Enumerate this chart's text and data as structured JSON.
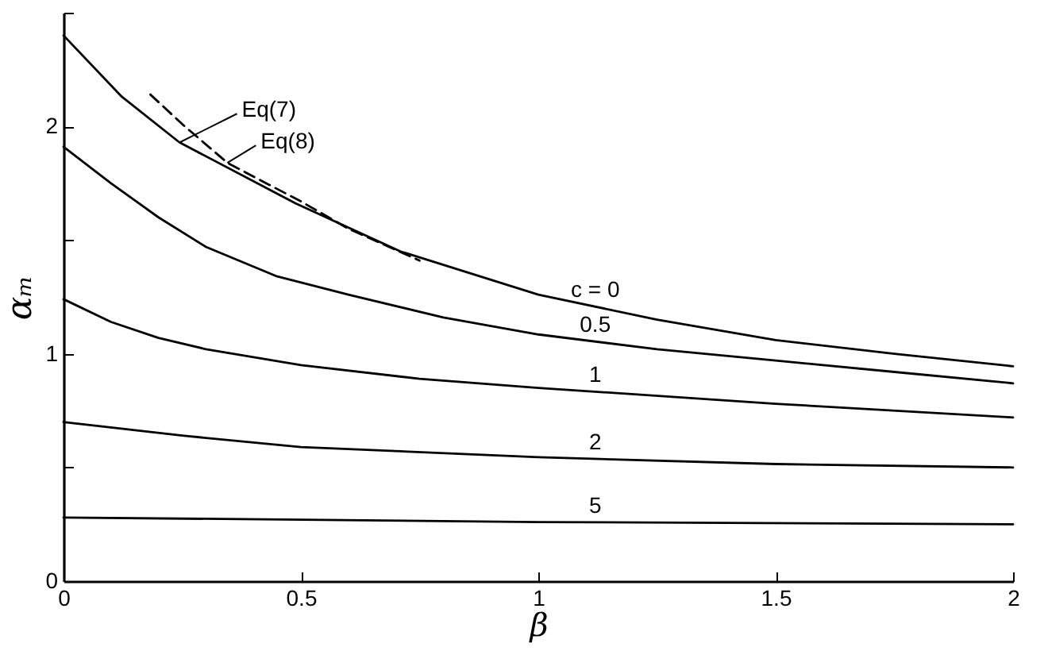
{
  "chart_data": {
    "type": "line",
    "xlabel": "β",
    "ylabel": "αₘ",
    "xlim": [
      0,
      2
    ],
    "xticks": [
      0,
      0.5,
      1,
      1.5,
      2
    ],
    "ylim": [
      0,
      2.5
    ],
    "yticks": [
      0,
      {
        "value": 0.5,
        "label": null
      },
      1,
      {
        "value": 1.5,
        "label": null
      },
      2,
      {
        "value": 2.5,
        "label": null
      }
    ],
    "grid": false,
    "marker": "none",
    "series": [
      {
        "name": "c = 0",
        "color": "#000000",
        "line_style": "solid",
        "x": [
          0,
          0.123,
          0.244,
          0.49,
          0.71,
          1,
          1.25,
          1.5,
          1.75,
          2
        ],
        "values": [
          2.4,
          2.13,
          1.93,
          1.66,
          1.45,
          1.26,
          1.15,
          1.06,
          1.0,
          0.945
        ]
      },
      {
        "name": "0.5",
        "color": "#000000",
        "line_style": "solid",
        "x": [
          0,
          0.1,
          0.2,
          0.3,
          0.45,
          0.6,
          0.8,
          1,
          1.25,
          1.5,
          1.75,
          2
        ],
        "values": [
          1.91,
          1.75,
          1.6,
          1.47,
          1.34,
          1.26,
          1.16,
          1.085,
          1.02,
          0.97,
          0.92,
          0.87
        ]
      },
      {
        "name": "1",
        "color": "#000000",
        "line_style": "solid",
        "x": [
          0,
          0.1,
          0.2,
          0.3,
          0.5,
          0.75,
          1,
          1.5,
          2
        ],
        "values": [
          1.24,
          1.14,
          1.07,
          1.02,
          0.95,
          0.89,
          0.85,
          0.78,
          0.72
        ]
      },
      {
        "name": "2",
        "color": "#000000",
        "line_style": "solid",
        "x": [
          0,
          0.25,
          0.5,
          1,
          1.5,
          2
        ],
        "values": [
          0.7,
          0.64,
          0.59,
          0.545,
          0.515,
          0.5
        ]
      },
      {
        "name": "5",
        "color": "#000000",
        "line_style": "solid",
        "x": [
          0,
          1,
          2
        ],
        "values": [
          0.28,
          0.26,
          0.25
        ]
      },
      {
        "color": "#000000",
        "line_style": "dashed",
        "x": [
          0.183,
          0.25,
          0.345,
          0.5,
          0.6,
          0.75
        ],
        "values": [
          2.14,
          2.01,
          1.84,
          1.67,
          1.55,
          1.41
        ]
      }
    ],
    "annotations": [
      {
        "text": "Eq(7)",
        "x": 0.245,
        "y": 1.93
      },
      {
        "text": "Eq(8)",
        "x": 0.345,
        "y": 1.84
      }
    ]
  }
}
